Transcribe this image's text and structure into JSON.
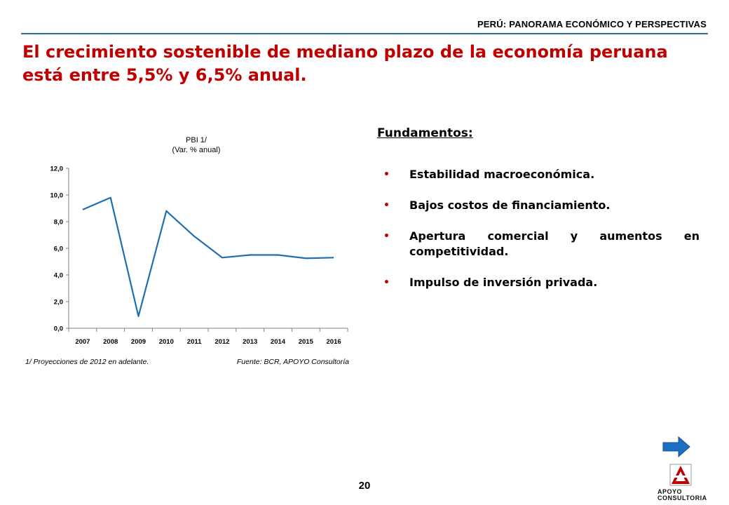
{
  "header": {
    "label": "PERÚ: PANORAMA ECONÓMICO Y PERSPECTIVAS"
  },
  "title": "El crecimiento sostenible de mediano plazo de la economía peruana está entre 5,5% y 6,5% anual.",
  "chart_data": {
    "type": "line",
    "title": "PBI 1/",
    "subtitle": "(Var. % anual)",
    "x": [
      "2007",
      "2008",
      "2009",
      "2010",
      "2011",
      "2012",
      "2013",
      "2014",
      "2015",
      "2016"
    ],
    "series": [
      {
        "values": [
          8.9,
          9.8,
          0.9,
          8.8,
          6.9,
          5.3,
          5.5,
          5.5,
          5.25,
          5.3
        ]
      }
    ],
    "ylim": [
      0,
      12
    ],
    "yticks": [
      "0,0",
      "2,0",
      "4,0",
      "6,0",
      "8,0",
      "10,0",
      "12,0"
    ],
    "grid": false,
    "line_color": "#1f6eb0"
  },
  "chart_notes": {
    "left": "1/ Proyecciones de 2012 en adelante.",
    "right": "Fuente: BCR, APOYO Consultoría"
  },
  "fundamentals": {
    "title": "Fundamentos:",
    "items": [
      "Estabilidad macroeconómica.",
      "Bajos costos de financiamiento.",
      "Apertura comercial y aumentos en competitividad.",
      "Impulso de inversión privada."
    ]
  },
  "page_number": "20",
  "logo": {
    "line1": "APOYO",
    "line2": "CONSULTORIA",
    "color": "#c00000"
  },
  "accent_color": "#c00000",
  "rule_color": "#2e6ea6",
  "nav_icon": "arrow-right-icon"
}
